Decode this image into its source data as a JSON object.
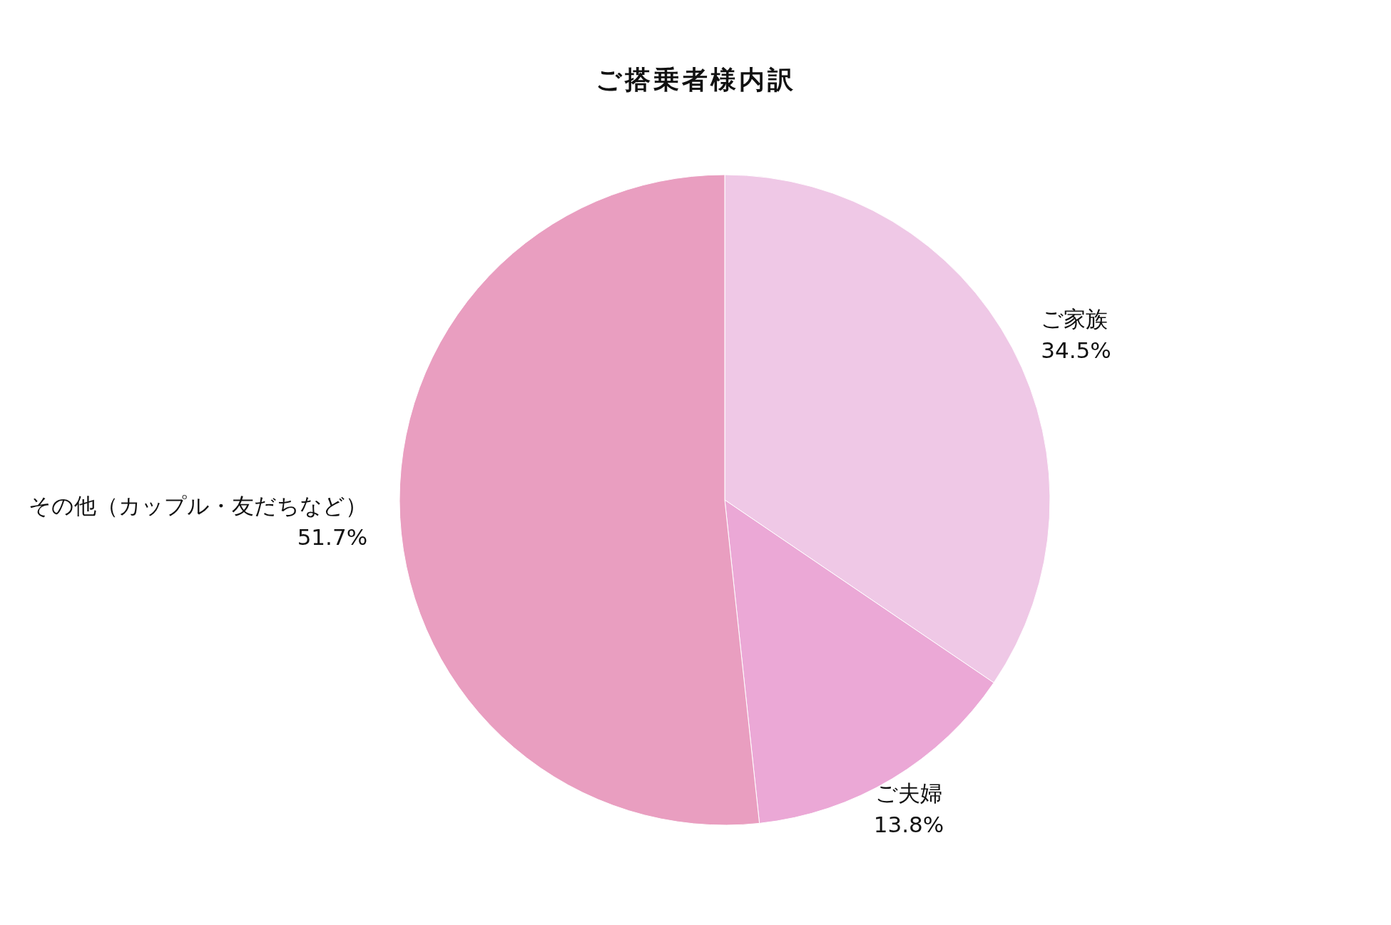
{
  "chart_data": {
    "type": "pie",
    "title": "ご搭乗者様内訳",
    "categories": [
      "ご家族",
      "ご夫婦",
      "その他（カップル・友だちなど）"
    ],
    "values": [
      34.5,
      13.8,
      51.7
    ],
    "value_labels": [
      "34.5%",
      "13.8%",
      "51.7%"
    ],
    "colors": [
      "#efc8e6",
      "#eba8d6",
      "#e99ec0"
    ]
  }
}
